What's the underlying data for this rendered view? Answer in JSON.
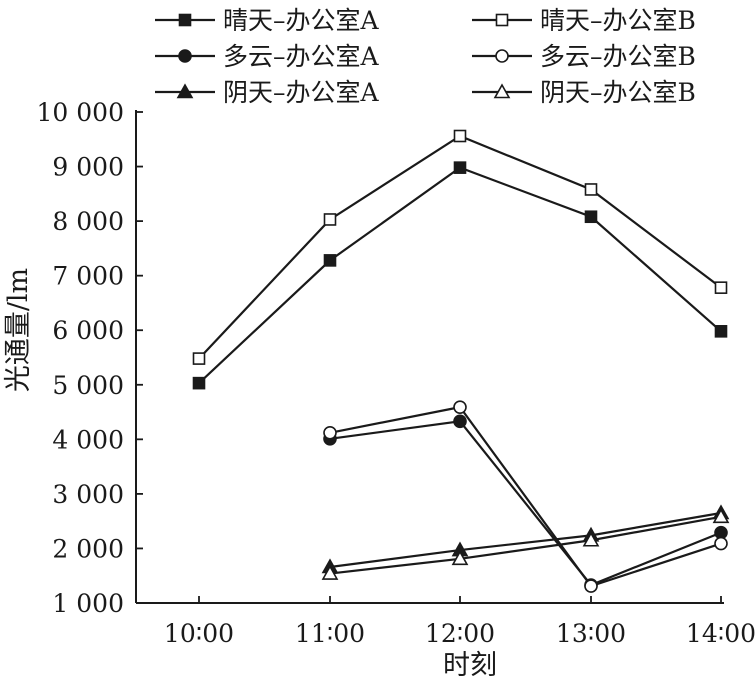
{
  "chart_data": {
    "type": "line",
    "title": "",
    "xlabel": "时刻",
    "ylabel": "光通量/lm",
    "categories": [
      "10:00",
      "11:00",
      "12:00",
      "13:00",
      "14:00"
    ],
    "x_tick_labels": [
      "10∶00",
      "11∶00",
      "12∶00",
      "13∶00",
      "14∶00"
    ],
    "y_ticks": [
      1000,
      2000,
      3000,
      4000,
      5000,
      6000,
      7000,
      8000,
      9000,
      10000
    ],
    "y_tick_labels": [
      "1 000",
      "2 000",
      "3 000",
      "4 000",
      "5 000",
      "6 000",
      "7 000",
      "8 000",
      "9 000",
      "10 000"
    ],
    "ylim": [
      1000,
      10000
    ],
    "grid": false,
    "legend_position": "top",
    "series": [
      {
        "name": "晴天–办公室A",
        "marker": "square",
        "fill": "filled",
        "values": [
          5030,
          7280,
          8980,
          8080,
          5980
        ]
      },
      {
        "name": "晴天–办公室B",
        "marker": "square",
        "fill": "open",
        "values": [
          5480,
          8030,
          9560,
          8580,
          6780
        ]
      },
      {
        "name": "多云–办公室A",
        "marker": "circle",
        "fill": "filled",
        "values": [
          null,
          4010,
          4330,
          1330,
          2290
        ]
      },
      {
        "name": "多云–办公室B",
        "marker": "circle",
        "fill": "open",
        "values": [
          null,
          4120,
          4590,
          1310,
          2090
        ]
      },
      {
        "name": "阴天–办公室A",
        "marker": "triangle",
        "fill": "filled",
        "values": [
          null,
          1660,
          1970,
          2240,
          2650
        ]
      },
      {
        "name": "阴天–办公室B",
        "marker": "triangle",
        "fill": "open",
        "values": [
          null,
          1540,
          1810,
          2150,
          2580
        ]
      }
    ]
  }
}
